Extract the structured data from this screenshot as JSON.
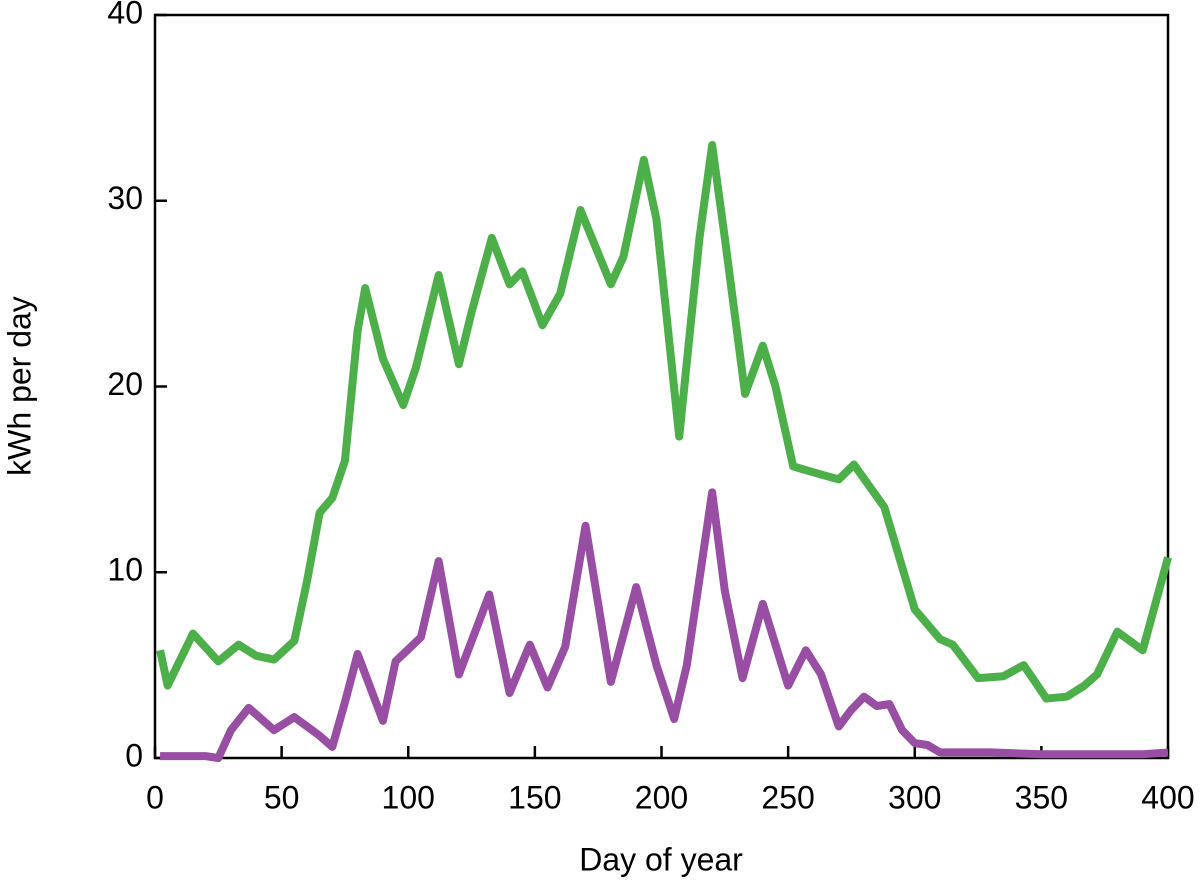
{
  "chart_data": {
    "type": "line",
    "xlabel": "Day of year",
    "ylabel": "kWh per day",
    "xlim": [
      0,
      400
    ],
    "ylim": [
      0,
      40
    ],
    "xticks": [
      0,
      50,
      100,
      150,
      200,
      250,
      300,
      350,
      400
    ],
    "yticks": [
      0,
      10,
      20,
      30,
      40
    ],
    "grid": false,
    "series": [
      {
        "color": "#4daf4a",
        "x": [
          2,
          5,
          15,
          25,
          33,
          40,
          47,
          55,
          60,
          65,
          70,
          75,
          80,
          83,
          90,
          98,
          103,
          112,
          120,
          125,
          133,
          140,
          145,
          153,
          160,
          168,
          180,
          185,
          193,
          198,
          207,
          215,
          220,
          225,
          233,
          240,
          245,
          252,
          262,
          270,
          276,
          288,
          300,
          310,
          315,
          325,
          335,
          343,
          352,
          360,
          367,
          372,
          380,
          390,
          400
        ],
        "values": [
          5.8,
          3.9,
          6.7,
          5.2,
          6.1,
          5.5,
          5.3,
          6.3,
          9.5,
          13.2,
          14.0,
          16.0,
          23.0,
          25.3,
          21.5,
          19.0,
          21.0,
          26.0,
          21.2,
          24.0,
          28.0,
          25.5,
          26.2,
          23.3,
          25.0,
          29.5,
          25.5,
          27.0,
          32.2,
          29.0,
          17.3,
          28.0,
          33.0,
          28.0,
          19.6,
          22.2,
          20.0,
          15.7,
          15.3,
          15.0,
          15.8,
          13.5,
          8.0,
          6.4,
          6.1,
          4.3,
          4.4,
          5.0,
          3.2,
          3.3,
          3.9,
          4.5,
          6.8,
          5.8,
          10.8
        ]
      },
      {
        "color": "#984ea3",
        "x": [
          2,
          20,
          25,
          30,
          37,
          47,
          55,
          65,
          70,
          75,
          80,
          90,
          95,
          105,
          112,
          120,
          132,
          140,
          148,
          155,
          162,
          170,
          180,
          190,
          198,
          205,
          210,
          220,
          225,
          232,
          240,
          250,
          257,
          263,
          270,
          275,
          280,
          285,
          290,
          295,
          300,
          305,
          310,
          330,
          350,
          370,
          390,
          400
        ],
        "values": [
          0.1,
          0.1,
          0,
          1.5,
          2.7,
          1.5,
          2.2,
          1.2,
          0.6,
          3.0,
          5.6,
          2.0,
          5.2,
          6.5,
          10.6,
          4.5,
          8.8,
          3.5,
          6.1,
          3.8,
          6.0,
          12.5,
          4.1,
          9.2,
          5.0,
          2.1,
          5.0,
          14.3,
          9.0,
          4.3,
          8.3,
          3.9,
          5.8,
          4.5,
          1.7,
          2.6,
          3.3,
          2.8,
          2.9,
          1.5,
          0.8,
          0.7,
          0.3,
          0.3,
          0.2,
          0.2,
          0.2,
          0.3
        ]
      }
    ]
  }
}
